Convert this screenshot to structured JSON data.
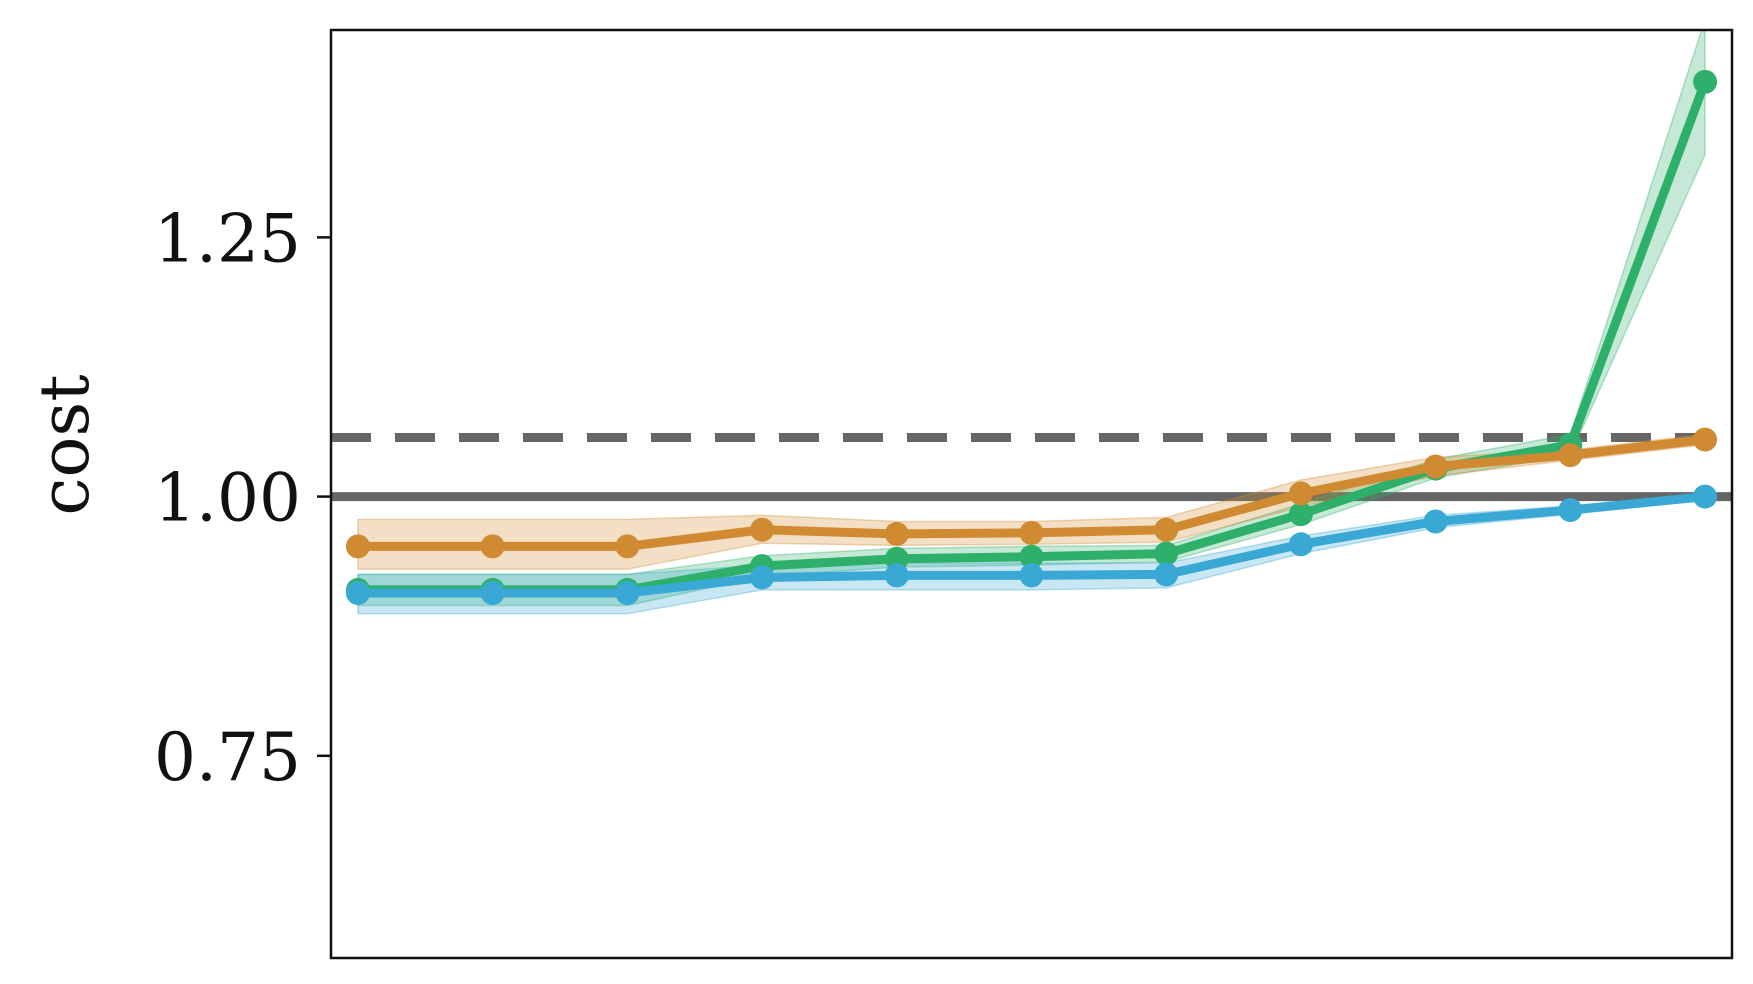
{
  "chart_data": {
    "type": "line",
    "title": "",
    "xlabel": "",
    "ylabel": "cost",
    "x_ticks_shown": false,
    "grid": false,
    "legend": "none",
    "ylim": [
      0.555,
      1.45
    ],
    "xlim": [
      -0.2,
      10.2
    ],
    "yticks": [
      {
        "value": 0.75,
        "label": "0.75"
      },
      {
        "value": 1.0,
        "label": "1.00"
      },
      {
        "value": 1.25,
        "label": "1.25"
      }
    ],
    "x": [
      0,
      1,
      2,
      3,
      4,
      5,
      6,
      7,
      8,
      9,
      10
    ],
    "reference_lines": [
      {
        "y": 1.0,
        "style": "solid",
        "color": "#666666"
      },
      {
        "y": 1.057,
        "style": "dashed",
        "color": "#666666"
      }
    ],
    "series": [
      {
        "color": "#2eb06a",
        "values": [
          0.91,
          0.91,
          0.91,
          0.933,
          0.94,
          0.942,
          0.945,
          0.983,
          1.027,
          1.05,
          1.4
        ],
        "band_lower": [
          0.895,
          0.895,
          0.895,
          0.923,
          0.932,
          0.934,
          0.937,
          0.973,
          1.018,
          1.04,
          1.33
        ],
        "band_upper": [
          0.925,
          0.925,
          0.925,
          0.943,
          0.95,
          0.952,
          0.953,
          0.993,
          1.036,
          1.06,
          1.46
        ]
      },
      {
        "color": "#d08b32",
        "values": [
          0.952,
          0.952,
          0.952,
          0.968,
          0.964,
          0.965,
          0.968,
          1.003,
          1.029,
          1.04,
          1.055
        ],
        "band_lower": [
          0.93,
          0.93,
          0.93,
          0.955,
          0.953,
          0.954,
          0.956,
          0.99,
          1.02,
          1.035,
          1.05
        ],
        "band_upper": [
          0.978,
          0.978,
          0.978,
          0.982,
          0.976,
          0.976,
          0.98,
          1.016,
          1.038,
          1.045,
          1.06
        ]
      },
      {
        "color": "#3aa8d4",
        "values": [
          0.907,
          0.907,
          0.907,
          0.922,
          0.924,
          0.924,
          0.925,
          0.954,
          0.976,
          0.987,
          1.0
        ],
        "band_lower": [
          0.887,
          0.887,
          0.887,
          0.91,
          0.91,
          0.91,
          0.912,
          0.945,
          0.97,
          0.983,
          0.997
        ],
        "band_upper": [
          0.925,
          0.925,
          0.925,
          0.934,
          0.936,
          0.936,
          0.936,
          0.962,
          0.982,
          0.991,
          1.003
        ]
      }
    ]
  }
}
